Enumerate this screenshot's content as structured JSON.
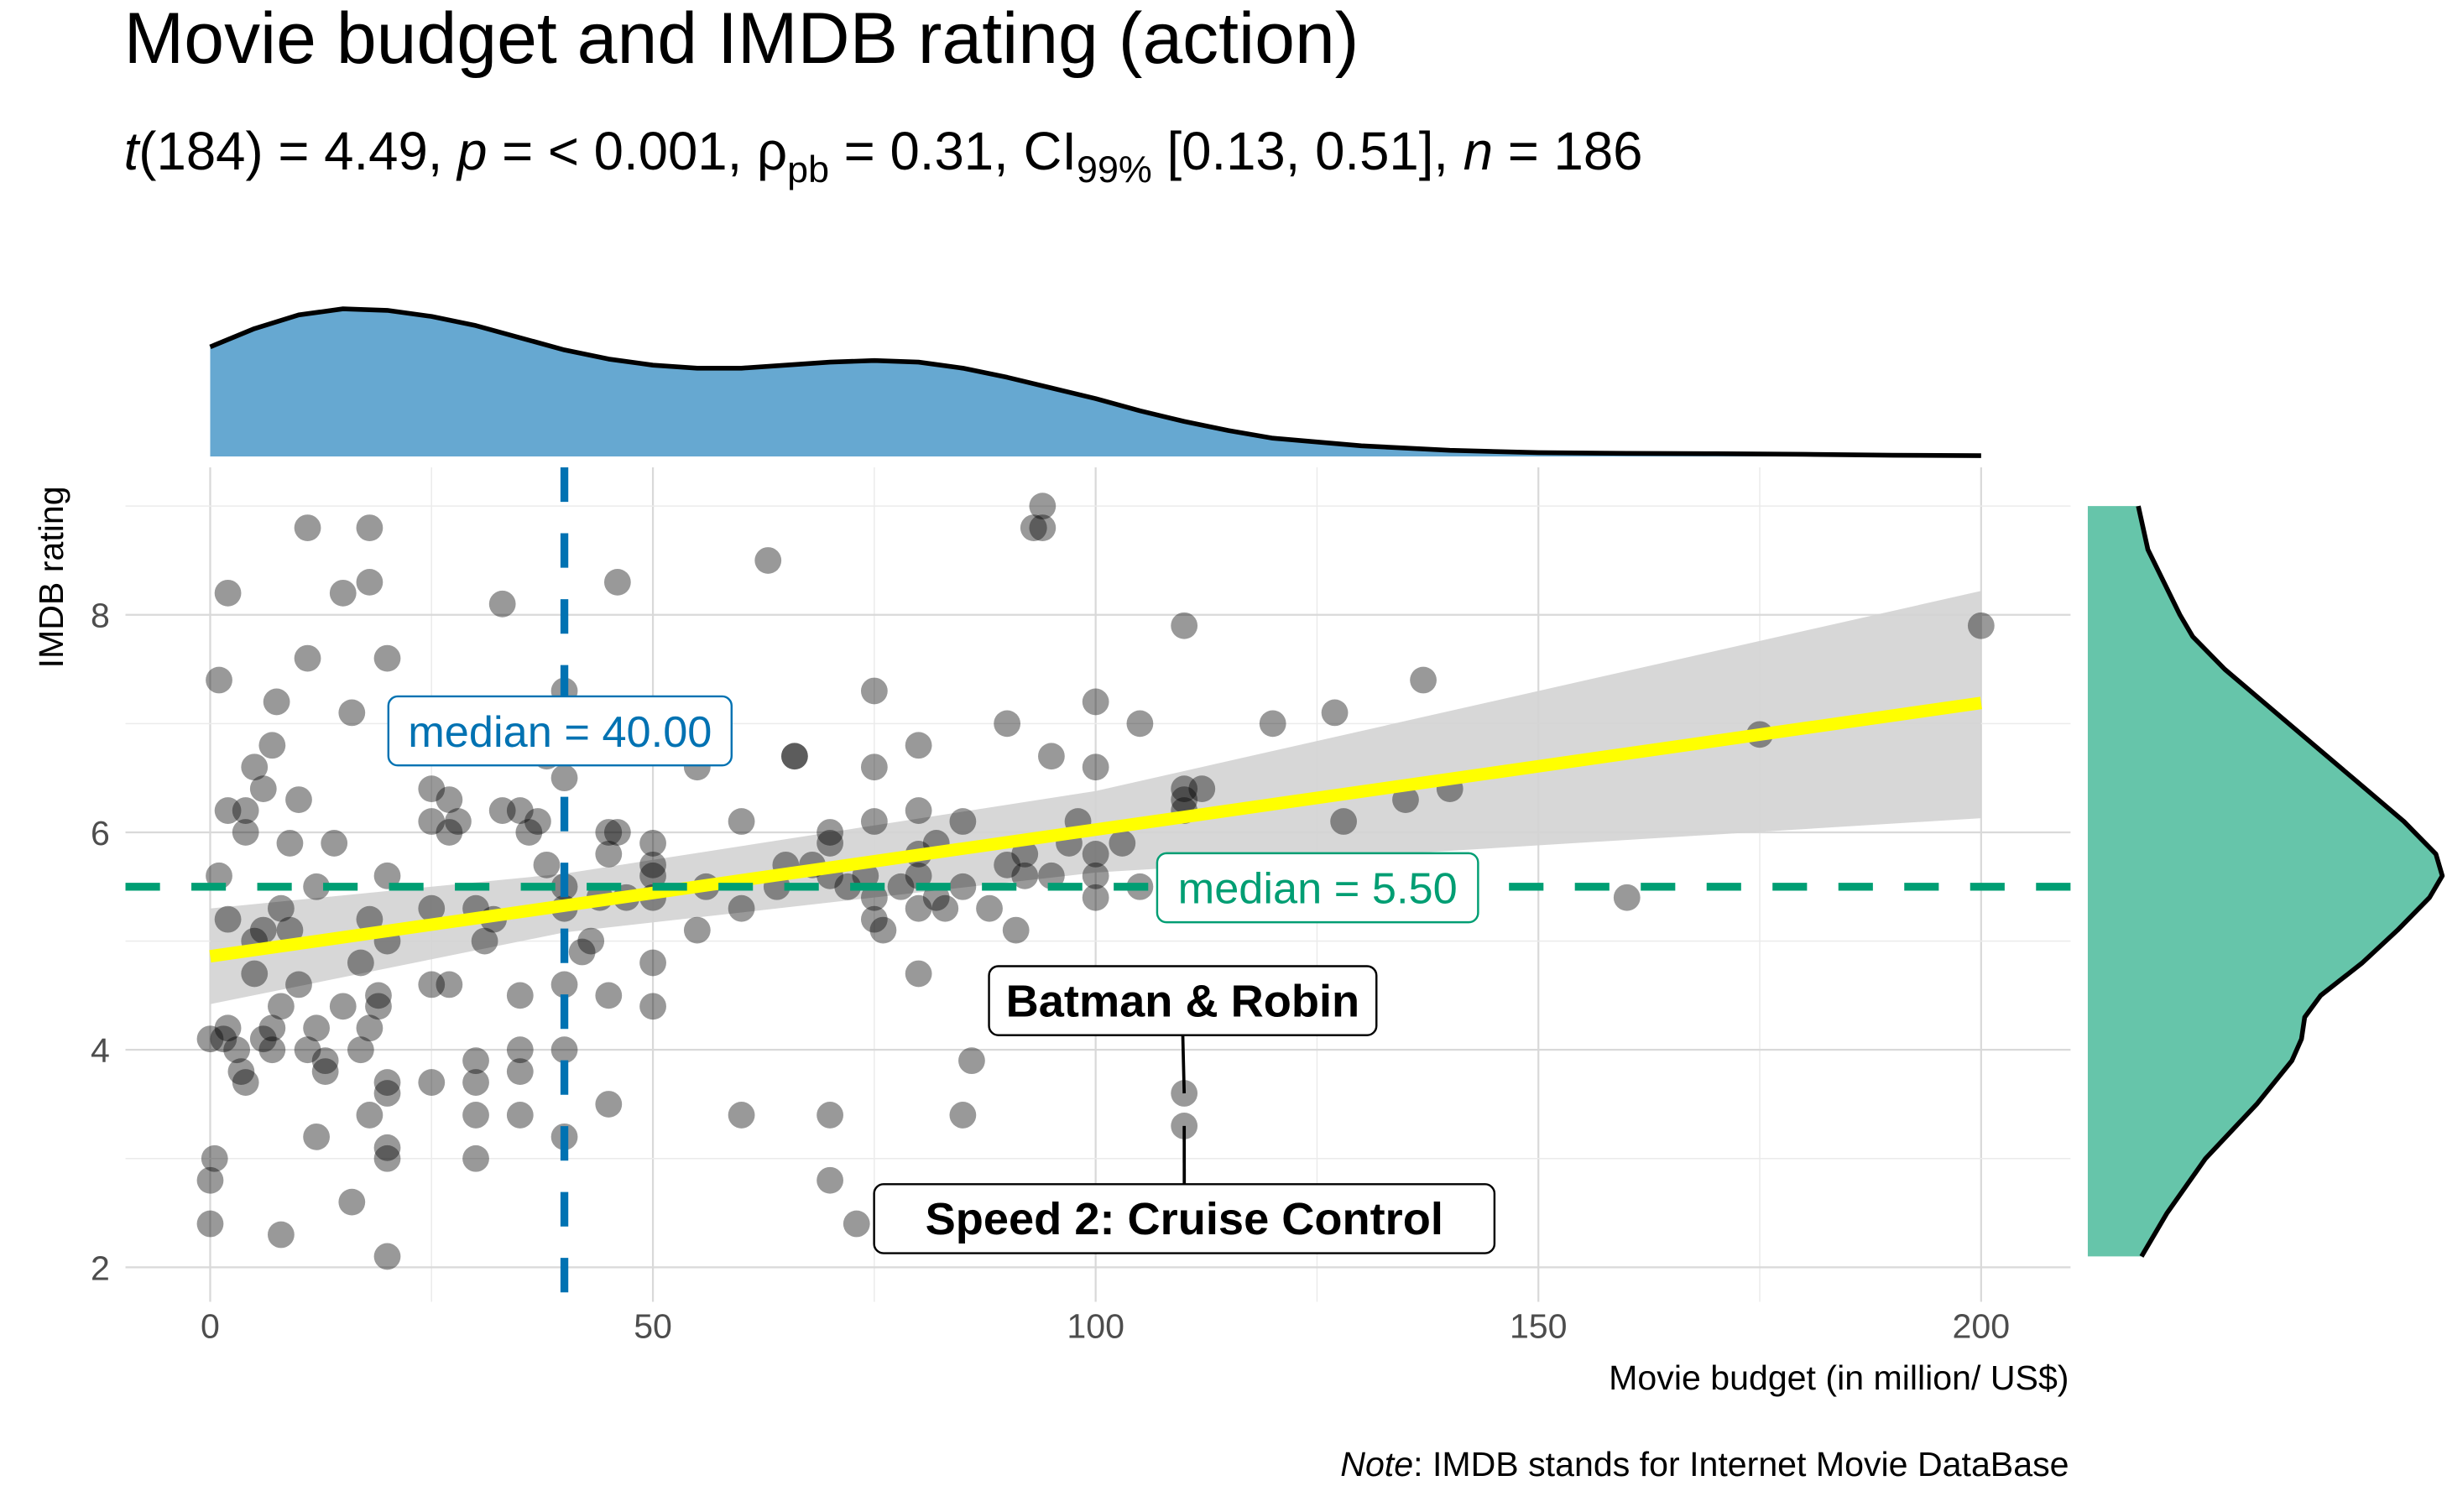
{
  "chart_data": {
    "type": "scatter",
    "title": "Movie budget and IMDB rating (action)",
    "subtitle": {
      "t_df": "184",
      "t_value": "4.49",
      "p": "< 0.001",
      "rho_pb": "0.31",
      "ci_level": "99%",
      "ci": "[0.13, 0.51]",
      "n": "186"
    },
    "xlabel": "Movie budget (in million/ US$)",
    "ylabel": "IMDB rating",
    "caption_note": "Note",
    "caption_text": ": IMDB stands for Internet Movie DataBase",
    "xlim": [
      -10,
      210
    ],
    "ylim": [
      1.8,
      9.3
    ],
    "x_ticks": [
      0,
      50,
      100,
      150,
      200
    ],
    "x_tick_labels": [
      "0",
      "50",
      "100",
      "150",
      "200"
    ],
    "y_ticks": [
      2,
      4,
      6,
      8
    ],
    "y_tick_labels": [
      "2",
      "4",
      "6",
      "8"
    ],
    "grid": true,
    "colors": {
      "points": "#000000",
      "regression_line": "#ffff00",
      "ci_band": "#d3d3d3",
      "x_median": "#0072b2",
      "y_median": "#009e73",
      "x_density_fill": "#66a8d1",
      "y_density_fill": "#66c5aa"
    },
    "regression": {
      "intercept": 4.86,
      "slope": 0.01165,
      "x_range": [
        0,
        200
      ],
      "ci_lower_at": [
        [
          0,
          4.42
        ],
        [
          40,
          5.08
        ],
        [
          100,
          5.63
        ],
        [
          200,
          6.13
        ]
      ],
      "ci_upper_at": [
        [
          0,
          5.3
        ],
        [
          40,
          5.62
        ],
        [
          100,
          6.38
        ],
        [
          200,
          8.22
        ]
      ]
    },
    "x_median": {
      "value": 40.0,
      "label": "median = 40.00"
    },
    "y_median": {
      "value": 5.5,
      "label": "median = 5.50"
    },
    "labels": [
      {
        "text": "Batman & Robin",
        "x": 110,
        "y": 3.6
      },
      {
        "text": "Speed 2: Cruise Control",
        "x": 110,
        "y": 3.3
      }
    ],
    "points": [
      [
        0,
        4.1
      ],
      [
        0,
        2.4
      ],
      [
        0,
        2.8
      ],
      [
        0.5,
        3.0
      ],
      [
        1,
        5.6
      ],
      [
        1,
        7.4
      ],
      [
        2,
        8.2
      ],
      [
        1.5,
        4.1
      ],
      [
        2,
        5.2
      ],
      [
        2,
        6.2
      ],
      [
        2,
        4.2
      ],
      [
        3,
        4.0
      ],
      [
        3.5,
        3.8
      ],
      [
        4,
        3.7
      ],
      [
        4,
        6.0
      ],
      [
        4,
        6.2
      ],
      [
        5,
        5.0
      ],
      [
        5,
        4.7
      ],
      [
        5,
        6.6
      ],
      [
        6,
        4.1
      ],
      [
        6,
        6.4
      ],
      [
        6,
        5.1
      ],
      [
        7,
        4.2
      ],
      [
        7,
        6.8
      ],
      [
        7.5,
        7.2
      ],
      [
        7,
        4.0
      ],
      [
        8,
        2.3
      ],
      [
        8,
        5.3
      ],
      [
        8,
        4.4
      ],
      [
        9,
        5.9
      ],
      [
        9,
        5.1
      ],
      [
        10,
        4.6
      ],
      [
        10,
        6.3
      ],
      [
        11,
        4.0
      ],
      [
        11,
        7.6
      ],
      [
        11,
        8.8
      ],
      [
        12,
        3.2
      ],
      [
        12,
        4.2
      ],
      [
        12,
        5.5
      ],
      [
        13,
        3.8
      ],
      [
        13,
        3.9
      ],
      [
        14,
        5.9
      ],
      [
        15,
        4.4
      ],
      [
        15,
        8.2
      ],
      [
        16,
        7.1
      ],
      [
        16,
        2.6
      ],
      [
        17,
        4.0
      ],
      [
        17,
        4.8
      ],
      [
        18,
        8.8
      ],
      [
        18,
        8.3
      ],
      [
        18,
        4.2
      ],
      [
        18,
        5.2
      ],
      [
        18,
        3.4
      ],
      [
        19,
        4.4
      ],
      [
        19,
        4.5
      ],
      [
        20,
        7.6
      ],
      [
        20,
        5.6
      ],
      [
        20,
        5.0
      ],
      [
        20,
        3.6
      ],
      [
        20,
        3.1
      ],
      [
        20,
        3.0
      ],
      [
        20,
        2.1
      ],
      [
        20,
        3.7
      ],
      [
        25,
        3.7
      ],
      [
        25,
        5.3
      ],
      [
        25,
        4.6
      ],
      [
        25,
        6.4
      ],
      [
        25,
        6.1
      ],
      [
        27,
        6.3
      ],
      [
        27,
        6.0
      ],
      [
        27,
        4.6
      ],
      [
        28,
        6.1
      ],
      [
        30,
        3.0
      ],
      [
        30,
        5.3
      ],
      [
        30,
        3.9
      ],
      [
        30,
        3.7
      ],
      [
        30,
        3.4
      ],
      [
        31,
        5.0
      ],
      [
        32,
        5.2
      ],
      [
        33,
        8.1
      ],
      [
        33,
        6.2
      ],
      [
        35,
        6.2
      ],
      [
        35,
        4.5
      ],
      [
        35,
        3.4
      ],
      [
        35,
        3.8
      ],
      [
        35,
        4.0
      ],
      [
        36,
        6.0
      ],
      [
        37,
        6.1
      ],
      [
        38,
        5.7
      ],
      [
        38,
        6.7
      ],
      [
        40,
        6.5
      ],
      [
        40,
        7.3
      ],
      [
        40,
        4.6
      ],
      [
        40,
        4.0
      ],
      [
        40,
        3.2
      ],
      [
        40,
        5.5
      ],
      [
        40,
        5.3
      ],
      [
        42,
        4.9
      ],
      [
        43,
        5.0
      ],
      [
        44,
        5.4
      ],
      [
        45,
        6.0
      ],
      [
        45,
        4.5
      ],
      [
        45,
        3.5
      ],
      [
        45,
        5.8
      ],
      [
        46,
        6.0
      ],
      [
        46,
        8.3
      ],
      [
        47,
        5.4
      ],
      [
        50,
        5.9
      ],
      [
        50,
        5.7
      ],
      [
        50,
        4.8
      ],
      [
        50,
        4.4
      ],
      [
        50,
        5.6
      ],
      [
        50,
        5.4
      ],
      [
        55,
        6.6
      ],
      [
        55,
        5.1
      ],
      [
        56,
        5.5
      ],
      [
        60,
        6.1
      ],
      [
        60,
        5.3
      ],
      [
        60,
        3.4
      ],
      [
        63,
        8.5
      ],
      [
        64,
        5.5
      ],
      [
        65,
        5.7
      ],
      [
        66,
        6.7
      ],
      [
        66,
        6.7
      ],
      [
        68,
        5.7
      ],
      [
        70,
        3.4
      ],
      [
        70,
        5.9
      ],
      [
        70,
        6.0
      ],
      [
        70,
        5.6
      ],
      [
        70,
        2.8
      ],
      [
        72,
        5.5
      ],
      [
        73,
        2.4
      ],
      [
        74,
        5.6
      ],
      [
        75,
        7.3
      ],
      [
        75,
        6.1
      ],
      [
        75,
        5.4
      ],
      [
        75,
        5.2
      ],
      [
        75,
        6.6
      ],
      [
        76,
        5.1
      ],
      [
        78,
        5.5
      ],
      [
        80,
        6.8
      ],
      [
        80,
        6.2
      ],
      [
        80,
        5.8
      ],
      [
        80,
        5.3
      ],
      [
        80,
        5.6
      ],
      [
        80,
        4.7
      ],
      [
        82,
        5.4
      ],
      [
        82,
        5.9
      ],
      [
        83,
        5.3
      ],
      [
        85,
        6.1
      ],
      [
        85,
        5.5
      ],
      [
        85,
        3.4
      ],
      [
        86,
        3.9
      ],
      [
        88,
        5.3
      ],
      [
        90,
        7.0
      ],
      [
        90,
        5.7
      ],
      [
        91,
        5.1
      ],
      [
        92,
        5.6
      ],
      [
        92,
        5.8
      ],
      [
        93,
        8.8
      ],
      [
        94,
        8.8
      ],
      [
        94,
        9.0
      ],
      [
        95,
        6.7
      ],
      [
        95,
        5.6
      ],
      [
        97,
        5.9
      ],
      [
        98,
        6.1
      ],
      [
        100,
        7.2
      ],
      [
        100,
        6.6
      ],
      [
        100,
        5.4
      ],
      [
        100,
        5.6
      ],
      [
        100,
        5.8
      ],
      [
        103,
        5.9
      ],
      [
        105,
        7.0
      ],
      [
        105,
        5.5
      ],
      [
        110,
        7.9
      ],
      [
        110,
        6.4
      ],
      [
        110,
        6.3
      ],
      [
        110,
        6.2
      ],
      [
        110,
        3.6
      ],
      [
        110,
        3.3
      ],
      [
        112,
        6.4
      ],
      [
        120,
        7.0
      ],
      [
        127,
        7.1
      ],
      [
        128,
        6.1
      ],
      [
        135,
        6.3
      ],
      [
        137,
        7.4
      ],
      [
        140,
        6.4
      ],
      [
        160,
        5.4
      ],
      [
        175,
        6.9
      ],
      [
        200,
        7.9
      ]
    ],
    "x_density": [
      [
        0,
        0.72
      ],
      [
        5,
        0.84
      ],
      [
        10,
        0.93
      ],
      [
        15,
        0.97
      ],
      [
        20,
        0.96
      ],
      [
        25,
        0.92
      ],
      [
        30,
        0.86
      ],
      [
        35,
        0.78
      ],
      [
        40,
        0.7
      ],
      [
        45,
        0.64
      ],
      [
        50,
        0.6
      ],
      [
        55,
        0.58
      ],
      [
        60,
        0.58
      ],
      [
        65,
        0.6
      ],
      [
        70,
        0.62
      ],
      [
        75,
        0.63
      ],
      [
        80,
        0.62
      ],
      [
        85,
        0.58
      ],
      [
        90,
        0.52
      ],
      [
        95,
        0.45
      ],
      [
        100,
        0.38
      ],
      [
        105,
        0.3
      ],
      [
        110,
        0.23
      ],
      [
        115,
        0.17
      ],
      [
        120,
        0.12
      ],
      [
        130,
        0.07
      ],
      [
        140,
        0.04
      ],
      [
        150,
        0.025
      ],
      [
        160,
        0.02
      ],
      [
        170,
        0.018
      ],
      [
        180,
        0.014
      ],
      [
        190,
        0.008
      ],
      [
        200,
        0.005
      ]
    ],
    "y_density": [
      [
        2.1,
        0.06
      ],
      [
        2.5,
        0.14
      ],
      [
        3.0,
        0.26
      ],
      [
        3.5,
        0.42
      ],
      [
        3.9,
        0.53
      ],
      [
        4.1,
        0.56
      ],
      [
        4.3,
        0.57
      ],
      [
        4.5,
        0.62
      ],
      [
        4.8,
        0.75
      ],
      [
        5.1,
        0.86
      ],
      [
        5.4,
        0.96
      ],
      [
        5.6,
        1.0
      ],
      [
        5.8,
        0.98
      ],
      [
        6.1,
        0.88
      ],
      [
        6.5,
        0.72
      ],
      [
        7.0,
        0.52
      ],
      [
        7.5,
        0.32
      ],
      [
        7.8,
        0.22
      ],
      [
        8.0,
        0.18
      ],
      [
        8.3,
        0.13
      ],
      [
        8.6,
        0.08
      ],
      [
        9.0,
        0.05
      ]
    ]
  }
}
